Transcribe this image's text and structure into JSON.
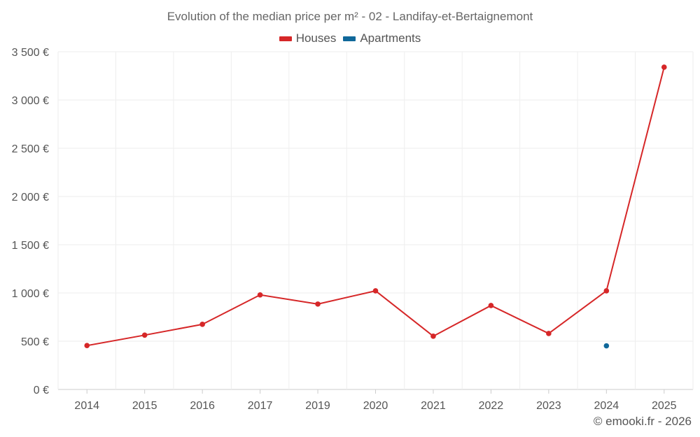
{
  "chart_data": {
    "type": "line",
    "title": "Evolution of the median price per m² - 02 - Landifay-et-Bertaignemont",
    "categories": [
      "2014",
      "2015",
      "2016",
      "2017",
      "2019",
      "2020",
      "2021",
      "2022",
      "2023",
      "2024",
      "2025"
    ],
    "series": [
      {
        "name": "Houses",
        "color": "#d62728",
        "values": [
          455,
          563,
          675,
          980,
          885,
          1022,
          552,
          870,
          580,
          1022,
          3340
        ]
      },
      {
        "name": "Apartments",
        "color": "#10689a",
        "values": [
          null,
          null,
          null,
          null,
          null,
          null,
          null,
          null,
          null,
          452,
          null
        ]
      }
    ],
    "ylim": [
      0,
      3500
    ],
    "yticks": [
      0,
      500,
      1000,
      1500,
      2000,
      2500,
      3000,
      3500
    ],
    "ytick_labels": [
      "0 €",
      "500 €",
      "1 000 €",
      "1 500 €",
      "2 000 €",
      "2 500 €",
      "3 000 €",
      "3 500 €"
    ],
    "grid": true,
    "legend_position": "top-center",
    "credit": "© emooki.fr - 2026"
  }
}
